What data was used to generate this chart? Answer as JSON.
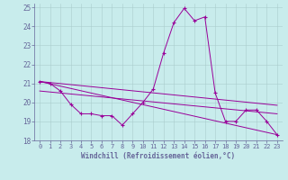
{
  "xlabel": "Windchill (Refroidissement éolien,°C)",
  "bg_color": "#c8ecec",
  "line_color": "#990099",
  "grid_color": "#aacccc",
  "axis_color": "#666699",
  "xlim": [
    -0.5,
    23.5
  ],
  "ylim": [
    18,
    25.2
  ],
  "yticks": [
    18,
    19,
    20,
    21,
    22,
    23,
    24,
    25
  ],
  "xticks": [
    0,
    1,
    2,
    3,
    4,
    5,
    6,
    7,
    8,
    9,
    10,
    11,
    12,
    13,
    14,
    15,
    16,
    17,
    18,
    19,
    20,
    21,
    22,
    23
  ],
  "curve1_x": [
    0,
    1,
    2,
    3,
    4,
    5,
    6,
    7,
    8,
    9,
    10,
    11,
    12,
    13,
    14,
    15,
    16,
    17,
    18,
    19,
    20,
    21,
    22,
    23
  ],
  "curve1_y": [
    21.1,
    21.0,
    20.6,
    19.9,
    19.4,
    19.4,
    19.3,
    19.3,
    18.8,
    19.4,
    20.0,
    20.7,
    22.6,
    24.2,
    24.95,
    24.3,
    24.5,
    20.5,
    19.0,
    19.0,
    19.6,
    19.6,
    19.0,
    18.3
  ],
  "line1_x": [
    0,
    23
  ],
  "line1_y": [
    21.1,
    18.3
  ],
  "line2_x": [
    0,
    23
  ],
  "line2_y": [
    21.1,
    19.85
  ],
  "line3_x": [
    0,
    23
  ],
  "line3_y": [
    20.6,
    19.4
  ]
}
